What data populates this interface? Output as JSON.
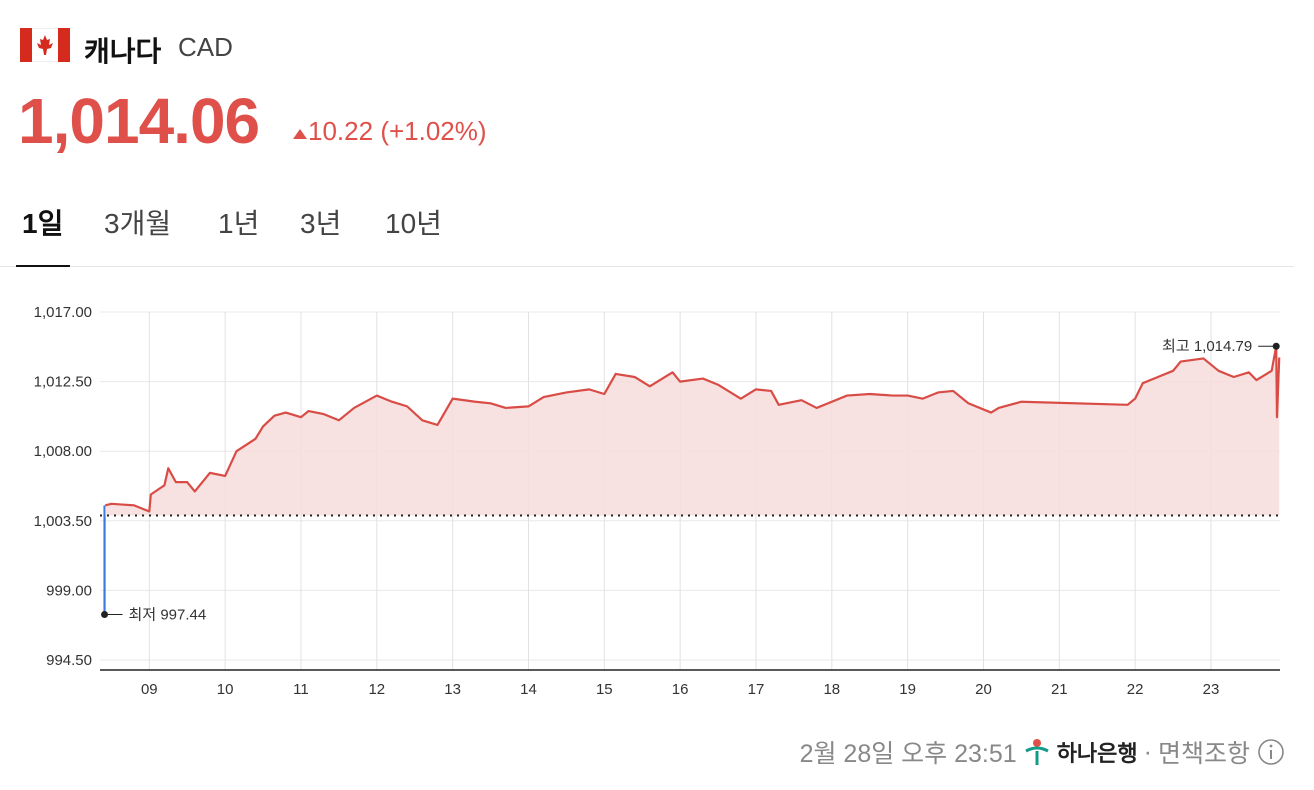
{
  "header": {
    "name": "캐나다",
    "code": "CAD"
  },
  "price": {
    "value": "1,014.06",
    "change": "10.22",
    "change_pct": "(+1.02%)"
  },
  "tabs": {
    "items": [
      "1일",
      "3개월",
      "1년",
      "3년",
      "10년"
    ],
    "active": 0
  },
  "chart_data": {
    "type": "line",
    "xlim": [
      8.35,
      23.91
    ],
    "ylim": [
      993.85,
      1017.78
    ],
    "xticks": [
      {
        "value": 9,
        "label": "09"
      },
      10,
      11,
      12,
      13,
      14,
      15,
      16,
      17,
      18,
      19,
      20,
      21,
      22,
      23
    ],
    "yticks": [
      {
        "value": 994.5,
        "label": "994.50"
      },
      {
        "value": 999,
        "label": "999.00"
      },
      {
        "value": 1003.5,
        "label": "1,003.50"
      },
      {
        "value": 1008,
        "label": "1,008.00"
      },
      {
        "value": 1012.5,
        "label": "1,012.50"
      },
      {
        "value": 1017,
        "label": "1,017.00"
      }
    ],
    "grid": true,
    "reference_line": 1003.84,
    "series": [
      {
        "color": "#3a7bdc",
        "x": [
          8.41,
          8.41
        ],
        "values": [
          997.44,
          1004.5
        ]
      },
      {
        "color": "#d94c45",
        "fill": "#f6dcdc",
        "x": [
          8.42,
          8.5,
          8.8,
          9.0,
          9.02,
          9.2,
          9.25,
          9.35,
          9.5,
          9.6,
          9.8,
          10.0,
          10.15,
          10.4,
          10.5,
          10.65,
          10.8,
          11.0,
          11.1,
          11.3,
          11.5,
          11.7,
          12.0,
          12.2,
          12.4,
          12.6,
          12.8,
          13.0,
          13.3,
          13.5,
          13.7,
          14.0,
          14.2,
          14.5,
          14.8,
          15.0,
          15.15,
          15.4,
          15.6,
          15.9,
          16.0,
          16.3,
          16.5,
          16.8,
          17.0,
          17.2,
          17.3,
          17.6,
          17.8,
          18.0,
          18.2,
          18.5,
          18.8,
          19.0,
          19.2,
          19.4,
          19.6,
          19.8,
          20.1,
          20.2,
          20.5,
          21.9,
          22.0,
          22.1,
          22.3,
          22.5,
          22.6,
          22.9,
          23.1,
          23.3,
          23.5,
          23.6,
          23.8,
          23.86,
          23.87,
          23.9
        ],
        "values": [
          1004.5,
          1004.6,
          1004.5,
          1004.1,
          1005.2,
          1005.8,
          1006.9,
          1006.0,
          1006.0,
          1005.4,
          1006.6,
          1006.4,
          1008.0,
          1008.8,
          1009.6,
          1010.3,
          1010.5,
          1010.2,
          1010.6,
          1010.4,
          1010.0,
          1010.8,
          1011.6,
          1011.2,
          1010.9,
          1010.0,
          1009.7,
          1011.4,
          1011.2,
          1011.1,
          1010.8,
          1010.9,
          1011.5,
          1011.8,
          1012.0,
          1011.7,
          1013.0,
          1012.8,
          1012.2,
          1013.1,
          1012.5,
          1012.7,
          1012.3,
          1011.4,
          1012.0,
          1011.9,
          1011.0,
          1011.3,
          1010.8,
          1011.2,
          1011.6,
          1011.7,
          1011.6,
          1011.6,
          1011.4,
          1011.8,
          1011.9,
          1011.1,
          1010.5,
          1010.8,
          1011.2,
          1011.0,
          1011.4,
          1012.4,
          1012.8,
          1013.2,
          1013.8,
          1014.0,
          1013.2,
          1012.8,
          1013.1,
          1012.6,
          1013.2,
          1014.79,
          1010.2,
          1014.06
        ]
      }
    ],
    "annotations": [
      {
        "label": "최저",
        "x": 8.41,
        "value": 997.44
      },
      {
        "label": "최고",
        "x": 23.86,
        "value": 1014.79,
        "value_label": "1,014.79"
      }
    ]
  },
  "footer": {
    "timestamp": "2월 28일 오후 23:51",
    "bank": "하나은행",
    "disclaimer": "면책조항"
  }
}
